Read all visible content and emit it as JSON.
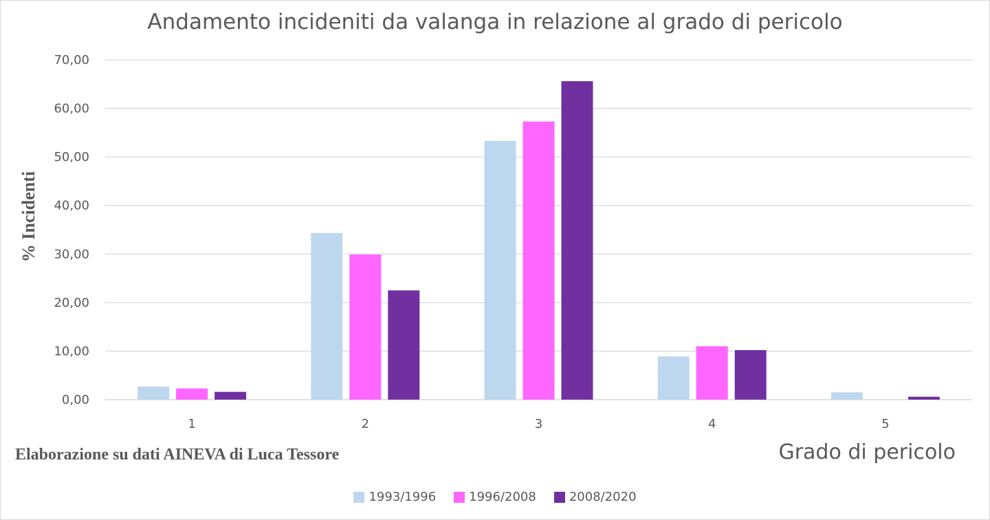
{
  "chart_data": {
    "type": "bar",
    "title": "Andamento incideniti da valanga in relazione al grado di pericolo",
    "xlabel": "Grado di pericolo",
    "ylabel": "% Incidenti",
    "credit": "Elaborazione su dati AINEVA di Luca Tessore",
    "categories": [
      "1",
      "2",
      "3",
      "4",
      "5"
    ],
    "ylim": [
      0,
      70
    ],
    "y_ticks": [
      "0,00",
      "10,00",
      "20,00",
      "30,00",
      "40,00",
      "50,00",
      "60,00",
      "70,00"
    ],
    "grid": true,
    "legend_position": "bottom",
    "series": [
      {
        "name": "1993/1996",
        "color": "#bdd7ee",
        "values": [
          2.7,
          34.3,
          53.3,
          8.9,
          1.5
        ]
      },
      {
        "name": "1996/2008",
        "color": "#ff66ff",
        "values": [
          2.3,
          29.9,
          57.3,
          11.0,
          0.0
        ]
      },
      {
        "name": "2008/2020",
        "color": "#7030a0",
        "values": [
          1.6,
          22.5,
          65.6,
          10.2,
          0.6
        ]
      }
    ]
  }
}
